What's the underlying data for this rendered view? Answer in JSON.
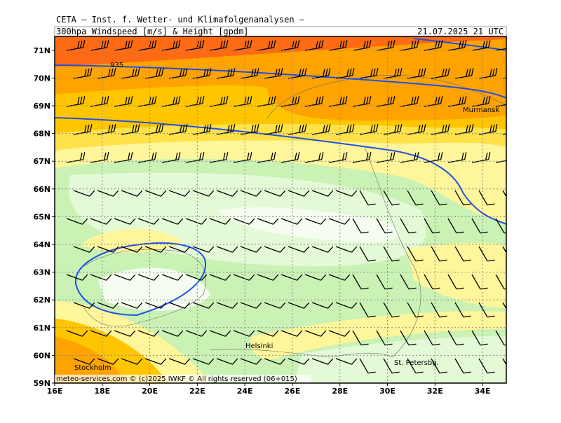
{
  "header": {
    "source": "CETA — Inst. f. Wetter- und Klimafolgenanalysen —",
    "field": "300hpa_Windspeed_[m/s]_&_Height_[gpdm]",
    "valid": "21.07.2025 21 UTC"
  },
  "map": {
    "xlim": [
      16,
      35
    ],
    "ylim": [
      59,
      71.5
    ],
    "xticks": [
      {
        "value": 16,
        "label": "16E"
      },
      {
        "value": 18,
        "label": "18E"
      },
      {
        "value": 20,
        "label": "20E"
      },
      {
        "value": 22,
        "label": "22E"
      },
      {
        "value": 24,
        "label": "24E"
      },
      {
        "value": 26,
        "label": "26E"
      },
      {
        "value": 28,
        "label": "28E"
      },
      {
        "value": 30,
        "label": "30E"
      },
      {
        "value": 32,
        "label": "32E"
      },
      {
        "value": 34,
        "label": "34E"
      }
    ],
    "yticks": [
      {
        "value": 59,
        "label": "59N"
      },
      {
        "value": 60,
        "label": "60N"
      },
      {
        "value": 61,
        "label": "61N"
      },
      {
        "value": 62,
        "label": "62N"
      },
      {
        "value": 63,
        "label": "63N"
      },
      {
        "value": 64,
        "label": "64N"
      },
      {
        "value": 65,
        "label": "65N"
      },
      {
        "value": 66,
        "label": "66N"
      },
      {
        "value": 67,
        "label": "67N"
      },
      {
        "value": 68,
        "label": "68N"
      },
      {
        "value": 69,
        "label": "69N"
      },
      {
        "value": 70,
        "label": "70N"
      },
      {
        "value": 71,
        "label": "71N"
      }
    ],
    "contour_label": "935",
    "places": [
      "Murmansk",
      "Helsinki",
      "Stockholm",
      "St. Petersbg."
    ],
    "footer": "meteo-services.com © (c)2025 IWKF © All rights reserved (06+015)"
  }
}
